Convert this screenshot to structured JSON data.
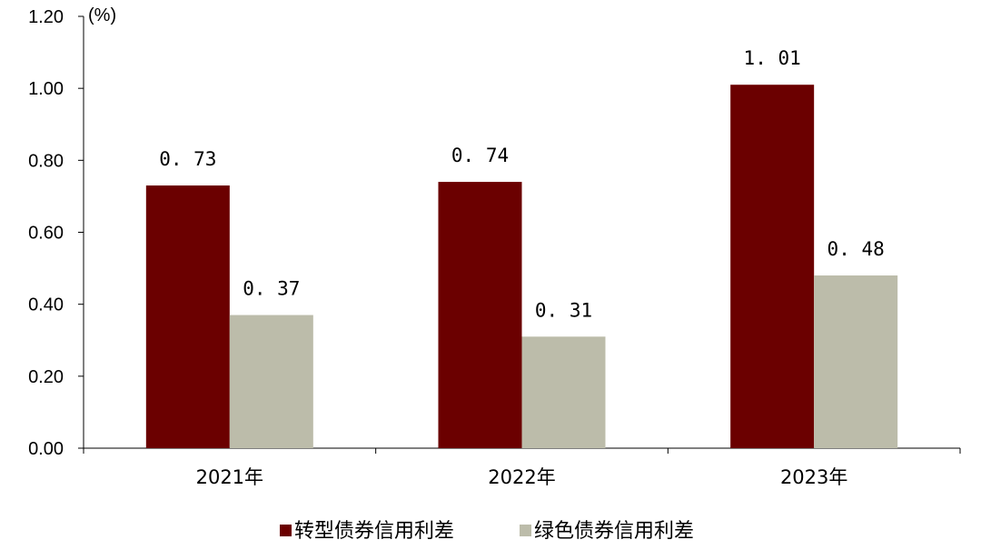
{
  "chart_data": {
    "type": "bar",
    "unit_label": "(%)",
    "categories": [
      "2021年",
      "2022年",
      "2023年"
    ],
    "series": [
      {
        "name": "转型债券信用利差",
        "values": [
          0.73,
          0.74,
          1.01
        ],
        "labels": [
          "0. 73",
          "0. 74",
          "1. 01"
        ],
        "color": "#6b0000"
      },
      {
        "name": "绿色债券信用利差",
        "values": [
          0.37,
          0.31,
          0.48
        ],
        "labels": [
          "0. 37",
          "0. 31",
          "0. 48"
        ],
        "color": "#bcbcaa"
      }
    ],
    "ylim": [
      0,
      1.2
    ],
    "yticks": [
      "0.00",
      "0.20",
      "0.40",
      "0.60",
      "0.80",
      "1.00",
      "1.20"
    ],
    "grid": false,
    "legend_position": "bottom"
  }
}
